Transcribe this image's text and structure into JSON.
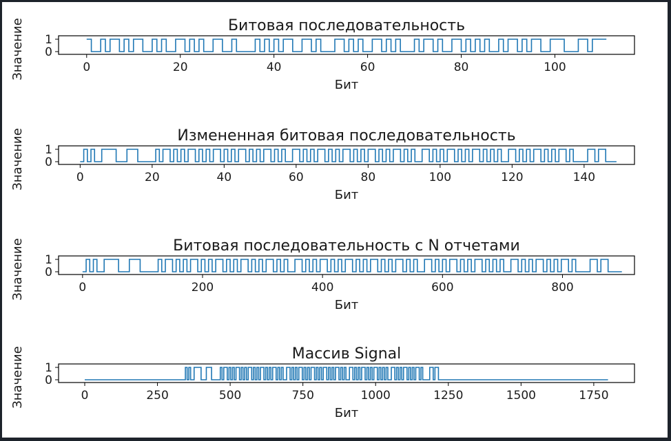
{
  "colors": {
    "line": "#1f77b4",
    "axis": "#000000",
    "figure_bg": "#ffffff",
    "frame": "#1d232b"
  },
  "chart_data": [
    {
      "type": "line",
      "drawstyle": "steps",
      "title": "Битовая последовательность",
      "xlabel": "Бит",
      "ylabel": "Значение",
      "xlim": [
        -6,
        117
      ],
      "ylim": [
        0,
        1
      ],
      "xticks": [
        0,
        20,
        40,
        60,
        80,
        100
      ],
      "yticks": [
        0,
        1
      ],
      "n": 112,
      "values": [
        1,
        0,
        0,
        1,
        0,
        1,
        1,
        0,
        1,
        0,
        1,
        1,
        0,
        0,
        1,
        0,
        1,
        0,
        0,
        1,
        1,
        0,
        1,
        0,
        1,
        0,
        0,
        1,
        1,
        0,
        0,
        1,
        0,
        0,
        0,
        0,
        1,
        0,
        1,
        0,
        1,
        0,
        1,
        1,
        0,
        0,
        1,
        1,
        0,
        1,
        0,
        0,
        0,
        1,
        1,
        0,
        1,
        0,
        1,
        0,
        0,
        1,
        1,
        0,
        1,
        0,
        1,
        0,
        0,
        0,
        1,
        0,
        1,
        1,
        0,
        1,
        0,
        0,
        1,
        1,
        0,
        1,
        0,
        1,
        0,
        1,
        0,
        0,
        1,
        0,
        1,
        1,
        0,
        1,
        0,
        1,
        1,
        0,
        0,
        1,
        1,
        1,
        0,
        0,
        0,
        1,
        1,
        0,
        1,
        1,
        1,
        1
      ],
      "grid": false
    },
    {
      "type": "line",
      "drawstyle": "steps",
      "title": "Измененная битовая последовательность",
      "xlabel": "Бит",
      "ylabel": "Значение",
      "xlim": [
        -6,
        154
      ],
      "ylim": [
        0,
        1
      ],
      "xticks": [
        0,
        20,
        40,
        60,
        80,
        100,
        120,
        140
      ],
      "yticks": [
        0,
        1
      ],
      "n": 150,
      "values": [
        0,
        1,
        0,
        1,
        0,
        0,
        1,
        1,
        1,
        1,
        0,
        0,
        0,
        1,
        1,
        1,
        0,
        0,
        0,
        0,
        0,
        1,
        0,
        1,
        1,
        0,
        1,
        0,
        1,
        0,
        1,
        1,
        0,
        1,
        0,
        1,
        0,
        1,
        1,
        0,
        1,
        0,
        1,
        0,
        1,
        1,
        0,
        1,
        0,
        1,
        0,
        1,
        1,
        0,
        1,
        0,
        1,
        0,
        0,
        1,
        1,
        0,
        1,
        0,
        1,
        0,
        1,
        1,
        0,
        1,
        0,
        1,
        0,
        1,
        1,
        0,
        1,
        0,
        1,
        0,
        1,
        1,
        0,
        1,
        0,
        1,
        0,
        1,
        1,
        0,
        1,
        0,
        1,
        0,
        0,
        1,
        1,
        0,
        1,
        0,
        1,
        0,
        1,
        1,
        0,
        1,
        0,
        1,
        0,
        1,
        1,
        0,
        1,
        0,
        1,
        0,
        1,
        0,
        0,
        1,
        1,
        0,
        1,
        0,
        1,
        0,
        1,
        1,
        0,
        1,
        0,
        1,
        0,
        1,
        1,
        0,
        1,
        0,
        0,
        0,
        0,
        1,
        1,
        0,
        1,
        1,
        0,
        0,
        0,
        0
      ],
      "grid": false
    },
    {
      "type": "line",
      "drawstyle": "steps",
      "title": "Битовая последовательность с N отчетами",
      "xlabel": "Бит",
      "ylabel": "Значение",
      "xlim": [
        -40,
        920
      ],
      "ylim": [
        0,
        1
      ],
      "xticks": [
        0,
        200,
        400,
        600,
        800
      ],
      "yticks": [
        0,
        1
      ],
      "n": 900,
      "samples_per_bit": 6,
      "source": "bits of the second subplot, each repeated 6 times",
      "grid": false
    },
    {
      "type": "line",
      "drawstyle": "steps",
      "title": "Массив Signal",
      "xlabel": "Бит",
      "ylabel": "Значение",
      "xlim": [
        -90,
        1890
      ],
      "ylim": [
        0,
        1
      ],
      "xticks": [
        0,
        250,
        500,
        750,
        1000,
        1250,
        1500,
        1750
      ],
      "yticks": [
        0,
        1
      ],
      "n": 1800,
      "signal_start": 340,
      "signal_end": 1240,
      "source": "zeros, then the third subplot's samples from 340 to 1240, then zeros",
      "grid": false
    }
  ]
}
